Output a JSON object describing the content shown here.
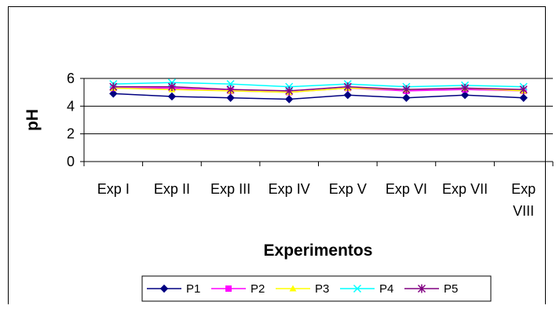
{
  "chart_data": {
    "type": "line",
    "categories": [
      "Exp I",
      "Exp II",
      "Exp III",
      "Exp IV",
      "Exp V",
      "Exp VI",
      "Exp VII",
      "Exp VIII"
    ],
    "xlabel": "Experimentos",
    "ylabel": "pH",
    "ylim": [
      0,
      6
    ],
    "yticks": [
      0,
      2,
      4,
      6
    ],
    "grid": true,
    "legend_position": "bottom",
    "series": [
      {
        "name": "P1",
        "color": "#000080",
        "marker": "diamond",
        "values": [
          4.9,
          4.7,
          4.6,
          4.5,
          4.8,
          4.6,
          4.8,
          4.6
        ]
      },
      {
        "name": "P2",
        "color": "#FF00FF",
        "marker": "square",
        "values": [
          5.3,
          5.3,
          5.1,
          5.0,
          5.3,
          5.1,
          5.2,
          5.1
        ]
      },
      {
        "name": "P3",
        "color": "#FFFF00",
        "marker": "triangle",
        "values": [
          5.3,
          5.2,
          5.1,
          5.0,
          5.3,
          5.2,
          5.3,
          5.1
        ]
      },
      {
        "name": "P4",
        "color": "#00FFFF",
        "marker": "x",
        "values": [
          5.6,
          5.7,
          5.6,
          5.4,
          5.6,
          5.4,
          5.5,
          5.4
        ]
      },
      {
        "name": "P5",
        "color": "#800080",
        "marker": "star",
        "values": [
          5.4,
          5.4,
          5.2,
          5.1,
          5.4,
          5.2,
          5.3,
          5.2
        ]
      }
    ]
  }
}
